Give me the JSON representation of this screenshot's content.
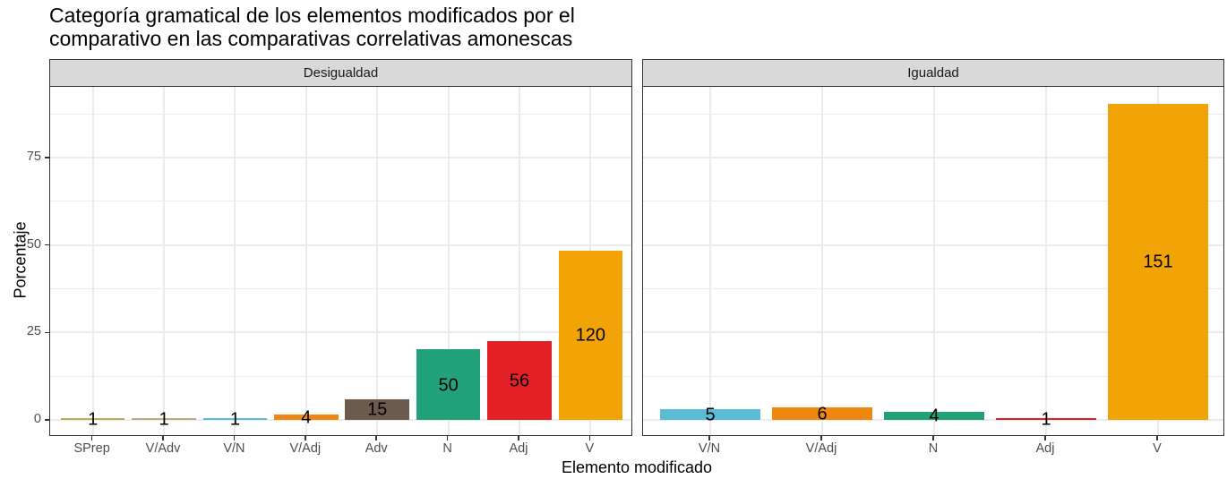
{
  "title": "Categoría gramatical de los elementos modificados por el comparativo en las comparativas correlativas amonescas",
  "title_line1": "Categoría gramatical de los elementos modificados por el",
  "title_line2": "comparativo en las comparativas correlativas amonescas",
  "xlabel": "Elemento modificado",
  "ylabel": "Porcentaje",
  "y_ticks": [
    "0",
    "25",
    "50",
    "75"
  ],
  "colors": {
    "SPrep": "#b5b150",
    "V/Adv": "#c4a67d",
    "V/N": "#5bbcd6",
    "V/Adj": "#f0870f",
    "Adv": "#6b5a4e",
    "N": "#22a27a",
    "Adj": "#e32024",
    "V": "#f2a305"
  },
  "chart_data": {
    "type": "bar",
    "title": "Categoría gramatical de los elementos modificados por el comparativo en las comparativas correlativas amonescas",
    "xlabel": "Elemento modificado",
    "ylabel": "Porcentaje",
    "ylim": [
      0,
      95
    ],
    "yticks": [
      0,
      25,
      50,
      75
    ],
    "grid": true,
    "legend": "none",
    "facets": [
      {
        "name": "Desigualdad",
        "categories": [
          "SPrep",
          "V/Adv",
          "V/N",
          "V/Adj",
          "Adv",
          "N",
          "Adj",
          "V"
        ],
        "counts": [
          1,
          1,
          1,
          4,
          15,
          50,
          56,
          120
        ],
        "values": [
          0.4,
          0.4,
          0.4,
          1.6,
          6.0,
          20.2,
          22.6,
          48.4
        ]
      },
      {
        "name": "Igualdad",
        "categories": [
          "V/N",
          "V/Adj",
          "N",
          "Adj",
          "V"
        ],
        "counts": [
          5,
          6,
          4,
          1,
          151
        ],
        "values": [
          3.0,
          3.6,
          2.4,
          0.6,
          90.4
        ]
      }
    ]
  }
}
